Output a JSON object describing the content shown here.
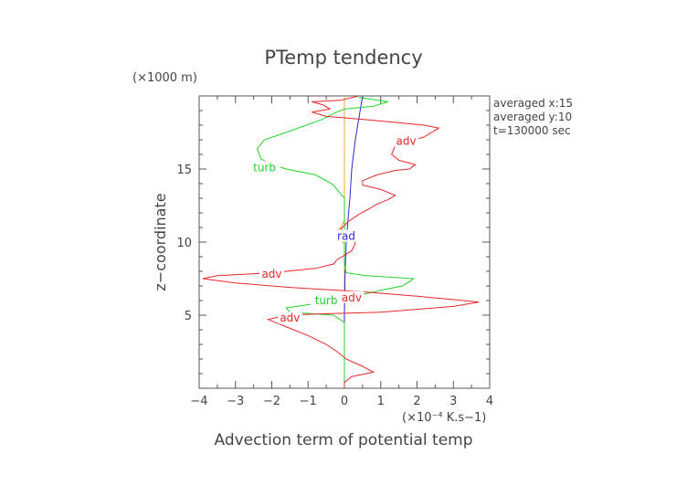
{
  "chart_data": {
    "type": "line",
    "title": "PTemp tendency",
    "xlabel": "Advection term of potential temp",
    "x_unit": "(×10⁻⁴ K.s−1)",
    "ylabel": "z−coordinate",
    "y_unit": "(×1000 m)",
    "xlim": [
      -4,
      4
    ],
    "ylim": [
      0,
      20
    ],
    "x_ticks": [
      -4,
      -3,
      -2,
      -1,
      0,
      1,
      2,
      3,
      4
    ],
    "y_ticks": [
      5,
      10,
      15
    ],
    "info_lines": [
      "averaged  x:15",
      "averaged  y:10",
      "t=130000 sec"
    ],
    "colors": {
      "adv": "#e8262a",
      "turb": "#22d12a",
      "rad": "#2a2ae0",
      "other": "#f2a838",
      "axis": "#555555"
    },
    "series": [
      {
        "name": "adv",
        "color": "#e8262a",
        "labels": [
          {
            "x": 1.7,
            "y": 16.9,
            "text": "adv"
          },
          {
            "x": -2.0,
            "y": 7.8,
            "text": "adv"
          },
          {
            "x": 0.2,
            "y": 6.2,
            "text": "adv"
          },
          {
            "x": -1.5,
            "y": 4.8,
            "text": "adv"
          }
        ],
        "points": [
          [
            0.0,
            0.0
          ],
          [
            0.0,
            0.4
          ],
          [
            0.2,
            0.8
          ],
          [
            0.8,
            1.1
          ],
          [
            0.5,
            1.5
          ],
          [
            0.05,
            2.0
          ],
          [
            -0.2,
            2.5
          ],
          [
            -0.5,
            3.0
          ],
          [
            -1.0,
            3.6
          ],
          [
            -1.5,
            4.1
          ],
          [
            -2.1,
            4.7
          ],
          [
            -1.6,
            5.0
          ],
          [
            -0.5,
            5.1
          ],
          [
            1.0,
            5.2
          ],
          [
            3.0,
            5.6
          ],
          [
            3.7,
            5.9
          ],
          [
            2.0,
            6.3
          ],
          [
            0.5,
            6.6
          ],
          [
            -1.5,
            6.9
          ],
          [
            -3.0,
            7.2
          ],
          [
            -3.9,
            7.5
          ],
          [
            -3.5,
            7.7
          ],
          [
            -2.0,
            7.9
          ],
          [
            -0.8,
            8.2
          ],
          [
            -0.3,
            8.5
          ],
          [
            -0.2,
            8.8
          ],
          [
            0.0,
            9.1
          ],
          [
            0.2,
            9.4
          ],
          [
            0.3,
            9.9
          ],
          [
            0.25,
            10.3
          ],
          [
            0.05,
            10.6
          ],
          [
            -0.1,
            10.9
          ],
          [
            0.1,
            11.4
          ],
          [
            0.4,
            11.9
          ],
          [
            0.7,
            12.3
          ],
          [
            0.9,
            12.6
          ],
          [
            1.2,
            12.9
          ],
          [
            1.4,
            13.2
          ],
          [
            1.0,
            13.6
          ],
          [
            0.5,
            13.9
          ],
          [
            0.5,
            14.2
          ],
          [
            0.9,
            14.6
          ],
          [
            1.4,
            14.9
          ],
          [
            1.8,
            15.0
          ],
          [
            1.95,
            15.3
          ],
          [
            1.5,
            15.6
          ],
          [
            1.3,
            16.0
          ],
          [
            1.4,
            16.6
          ],
          [
            2.2,
            17.2
          ],
          [
            2.6,
            17.8
          ],
          [
            2.2,
            18.0
          ],
          [
            0.5,
            18.4
          ],
          [
            -0.5,
            18.6
          ],
          [
            -0.9,
            18.9
          ],
          [
            -0.4,
            19.1
          ],
          [
            -0.6,
            19.4
          ],
          [
            -0.9,
            19.6
          ],
          [
            -0.1,
            19.7
          ],
          [
            0.4,
            20.0
          ]
        ]
      },
      {
        "name": "turb",
        "color": "#22d12a",
        "labels": [
          {
            "x": -2.2,
            "y": 15.1,
            "text": "turb"
          },
          {
            "x": -0.5,
            "y": 6.0,
            "text": "turb"
          }
        ],
        "points": [
          [
            0.0,
            0.0
          ],
          [
            0.0,
            3.0
          ],
          [
            0.0,
            4.5
          ],
          [
            -0.3,
            5.0
          ],
          [
            -1.5,
            5.2
          ],
          [
            -1.6,
            5.5
          ],
          [
            -0.5,
            5.9
          ],
          [
            0.3,
            6.3
          ],
          [
            1.0,
            6.7
          ],
          [
            1.6,
            7.0
          ],
          [
            1.8,
            7.3
          ],
          [
            1.9,
            7.5
          ],
          [
            0.6,
            7.7
          ],
          [
            0.05,
            7.9
          ],
          [
            0.0,
            8.5
          ],
          [
            0.0,
            11.5
          ],
          [
            0.0,
            13.0
          ],
          [
            -0.3,
            13.9
          ],
          [
            -0.5,
            14.2
          ],
          [
            -0.8,
            14.6
          ],
          [
            -1.6,
            15.0
          ],
          [
            -2.0,
            15.3
          ],
          [
            -2.3,
            15.7
          ],
          [
            -2.4,
            16.4
          ],
          [
            -2.2,
            17.0
          ],
          [
            -1.5,
            17.6
          ],
          [
            -0.6,
            18.4
          ],
          [
            -0.3,
            18.8
          ],
          [
            0.0,
            19.1
          ],
          [
            0.8,
            19.3
          ],
          [
            1.2,
            19.6
          ],
          [
            0.4,
            19.9
          ]
        ]
      },
      {
        "name": "rad",
        "color": "#2a2ae0",
        "labels": [
          {
            "x": 0.05,
            "y": 10.4,
            "text": "rad"
          }
        ],
        "points": [
          [
            0.0,
            0.0
          ],
          [
            0.0,
            5.0
          ],
          [
            0.02,
            8.0
          ],
          [
            0.05,
            10.0
          ],
          [
            0.1,
            11.6
          ],
          [
            0.15,
            13.0
          ],
          [
            0.2,
            15.0
          ],
          [
            0.3,
            17.0
          ],
          [
            0.4,
            18.5
          ],
          [
            0.5,
            20.0
          ]
        ]
      },
      {
        "name": "",
        "color": "#f2a838",
        "labels": [],
        "points": [
          [
            0.0,
            0.0
          ],
          [
            0.0,
            9.9
          ],
          [
            -0.15,
            10.2
          ],
          [
            -0.25,
            10.6
          ],
          [
            -0.1,
            11.0
          ],
          [
            0.0,
            11.5
          ],
          [
            0.0,
            20.0
          ]
        ]
      }
    ]
  }
}
